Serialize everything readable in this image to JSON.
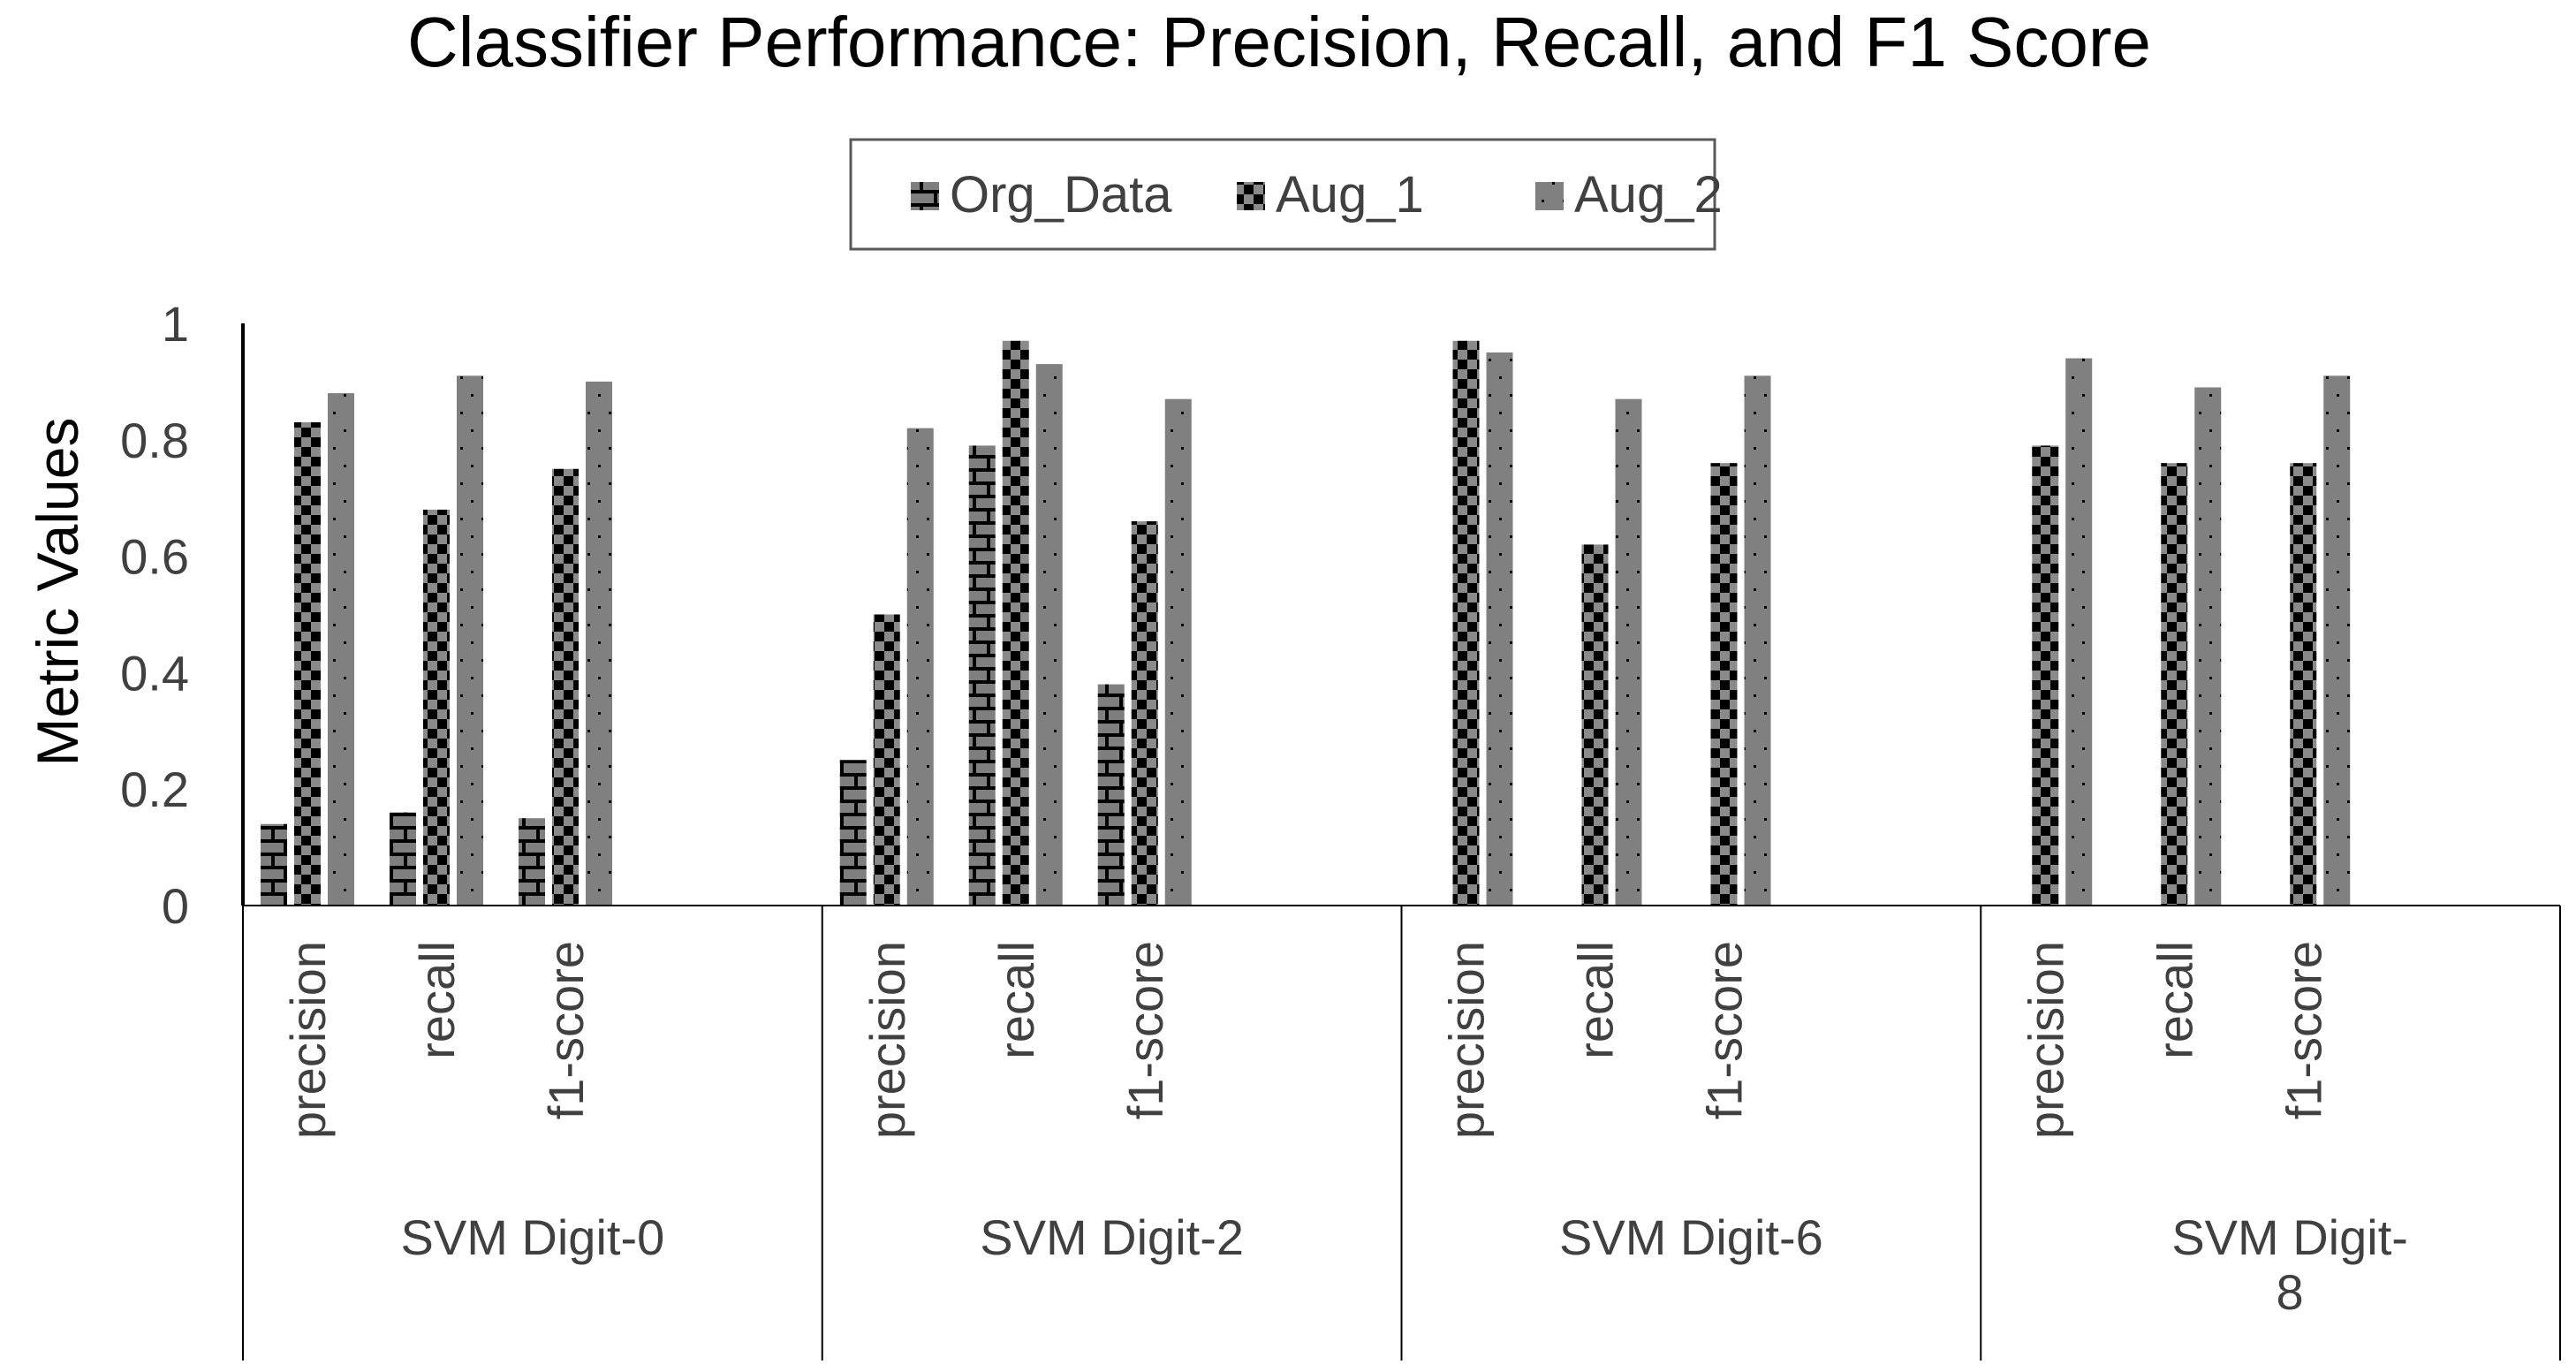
{
  "chart_data": {
    "type": "bar",
    "title": "Classifier Performance: Precision, Recall, and F1 Score",
    "xlabel": "",
    "ylabel": "Metric Values",
    "ylim": [
      0,
      1
    ],
    "yticks": [
      "0",
      "0.2",
      "0.4",
      "0.6",
      "0.8",
      "1"
    ],
    "legend_position": "top-center",
    "grid": false,
    "groups": [
      {
        "label": "SVM Digit-0",
        "label_lines": [
          "SVM Digit-0"
        ]
      },
      {
        "label": "SVM Digit-2",
        "label_lines": [
          "SVM Digit-2"
        ]
      },
      {
        "label": "SVM Digit-6",
        "label_lines": [
          "SVM Digit-6"
        ]
      },
      {
        "label": "SVM Digit-8",
        "label_lines": [
          "SVM Digit-",
          "8"
        ]
      }
    ],
    "categories": [
      "precision",
      "recall",
      "f1-score"
    ],
    "series": [
      {
        "name": "Org_Data",
        "pattern": "brick",
        "color": "#808080",
        "values": [
          [
            0.14,
            0.16,
            0.15
          ],
          [
            0.25,
            0.79,
            0.38
          ],
          [
            0,
            0,
            0
          ],
          [
            0,
            0,
            0
          ]
        ]
      },
      {
        "name": "Aug_1",
        "pattern": "checker",
        "color": "#000000",
        "values": [
          [
            0.83,
            0.68,
            0.75
          ],
          [
            0.5,
            0.97,
            0.66
          ],
          [
            0.97,
            0.62,
            0.76
          ],
          [
            0.79,
            0.76,
            0.76
          ]
        ]
      },
      {
        "name": "Aug_2",
        "pattern": "dots",
        "color": "#808080",
        "values": [
          [
            0.88,
            0.91,
            0.9
          ],
          [
            0.82,
            0.93,
            0.87
          ],
          [
            0.95,
            0.87,
            0.91
          ],
          [
            0.94,
            0.89,
            0.91
          ]
        ]
      }
    ]
  }
}
